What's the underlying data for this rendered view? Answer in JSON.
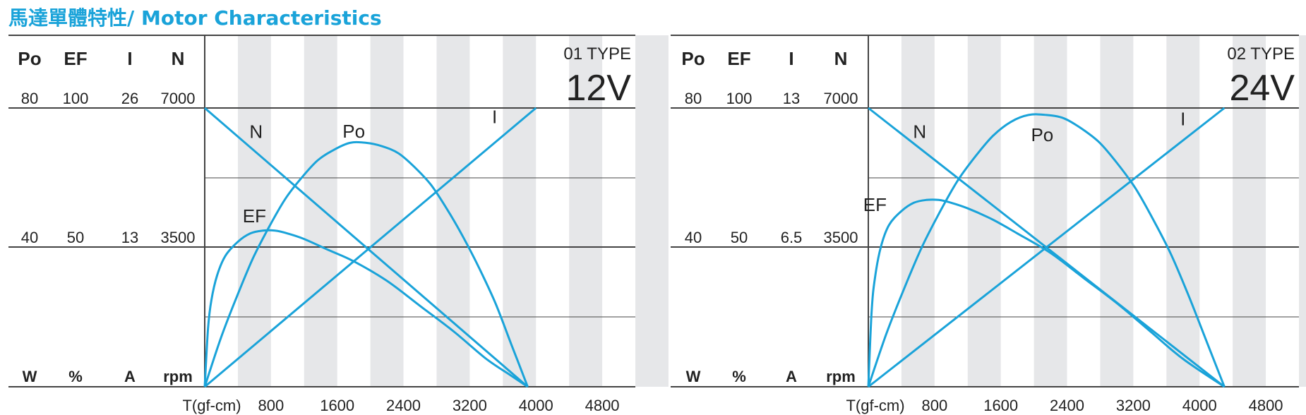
{
  "header": {
    "title": "馬達單體特性/ Motor Characteristics"
  },
  "chart_data": [
    {
      "type": "line",
      "type_label": "01 TYPE",
      "voltage": "12V",
      "columns": [
        "Po",
        "EF",
        "I",
        "N"
      ],
      "units": [
        "W",
        "%",
        "A",
        "rpm"
      ],
      "top_values": [
        "80",
        "100",
        "26",
        "7000"
      ],
      "mid_values": [
        "40",
        "50",
        "13",
        "3500"
      ],
      "xlabel": "T(gf-cm)",
      "xticks": [
        "800",
        "1600",
        "2400",
        "3200",
        "4000",
        "4800"
      ],
      "xlim": [
        0,
        5200
      ],
      "series": [
        {
          "name": "N",
          "scale_max": 7000,
          "label_at": [
            620,
            6250
          ],
          "points": [
            [
              0,
              7000
            ],
            [
              3900,
              0
            ]
          ]
        },
        {
          "name": "I",
          "scale_max": 26,
          "label_at": [
            3500,
            24.6
          ],
          "points": [
            [
              0,
              0
            ],
            [
              4000,
              26
            ]
          ]
        },
        {
          "name": "Po",
          "scale_max": 80,
          "label_at": [
            1800,
            71.5
          ],
          "points": [
            [
              0,
              0
            ],
            [
              195,
              14
            ],
            [
              390,
              26
            ],
            [
              585,
              37
            ],
            [
              780,
              46
            ],
            [
              975,
              54
            ],
            [
              1170,
              60
            ],
            [
              1365,
              65
            ],
            [
              1560,
              68
            ],
            [
              1755,
              70
            ],
            [
              1950,
              70
            ],
            [
              2145,
              69
            ],
            [
              2340,
              67
            ],
            [
              2535,
              63
            ],
            [
              2730,
              58
            ],
            [
              2925,
              51
            ],
            [
              3120,
              43
            ],
            [
              3315,
              34
            ],
            [
              3510,
              24
            ],
            [
              3705,
              12
            ],
            [
              3900,
              0
            ]
          ]
        },
        {
          "name": "EF",
          "scale_max": 100,
          "label_at": [
            600,
            59
          ],
          "points": [
            [
              0,
              0
            ],
            [
              40,
              21
            ],
            [
              80,
              31
            ],
            [
              150,
              40
            ],
            [
              250,
              47
            ],
            [
              400,
              52
            ],
            [
              550,
              55
            ],
            [
              700,
              56
            ],
            [
              850,
              56
            ],
            [
              1000,
              55
            ],
            [
              1200,
              53
            ],
            [
              1500,
              49
            ],
            [
              1800,
              45
            ],
            [
              2200,
              38
            ],
            [
              2600,
              29
            ],
            [
              3000,
              20
            ],
            [
              3400,
              10
            ],
            [
              3700,
              4
            ],
            [
              3900,
              0
            ]
          ]
        }
      ]
    },
    {
      "type": "line",
      "type_label": "02 TYPE",
      "voltage": "24V",
      "columns": [
        "Po",
        "EF",
        "I",
        "N"
      ],
      "units": [
        "W",
        "%",
        "A",
        "rpm"
      ],
      "top_values": [
        "80",
        "100",
        "13",
        "7000"
      ],
      "mid_values": [
        "40",
        "50",
        "6.5",
        "3500"
      ],
      "xlabel": "T(gf-cm)",
      "xticks": [
        "800",
        "1600",
        "2400",
        "3200",
        "4000",
        "4800"
      ],
      "xlim": [
        0,
        5200
      ],
      "series": [
        {
          "name": "N",
          "scale_max": 7000,
          "label_at": [
            620,
            6250
          ],
          "points": [
            [
              0,
              7000
            ],
            [
              4300,
              0
            ]
          ]
        },
        {
          "name": "I",
          "scale_max": 13,
          "label_at": [
            3800,
            12.2
          ],
          "points": [
            [
              0,
              0
            ],
            [
              4300,
              13
            ]
          ]
        },
        {
          "name": "Po",
          "scale_max": 80,
          "label_at": [
            2100,
            70.5
          ],
          "points": [
            [
              0,
              0
            ],
            [
              215,
              15
            ],
            [
              430,
              28
            ],
            [
              645,
              40
            ],
            [
              860,
              50
            ],
            [
              1075,
              59
            ],
            [
              1290,
              66
            ],
            [
              1505,
              72
            ],
            [
              1720,
              76
            ],
            [
              1935,
              78
            ],
            [
              2150,
              78
            ],
            [
              2365,
              77
            ],
            [
              2580,
              74
            ],
            [
              2795,
              70
            ],
            [
              3010,
              64
            ],
            [
              3225,
              57
            ],
            [
              3440,
              48
            ],
            [
              3655,
              38
            ],
            [
              3870,
              26
            ],
            [
              4085,
              13
            ],
            [
              4300,
              0
            ]
          ]
        },
        {
          "name": "EF",
          "scale_max": 100,
          "label_at": [
            80,
            63
          ],
          "points": [
            [
              0,
              0
            ],
            [
              40,
              27
            ],
            [
              80,
              39
            ],
            [
              150,
              50
            ],
            [
              250,
              58
            ],
            [
              400,
              63
            ],
            [
              550,
              66
            ],
            [
              700,
              67
            ],
            [
              850,
              67
            ],
            [
              1000,
              66
            ],
            [
              1200,
              64
            ],
            [
              1500,
              60
            ],
            [
              1800,
              55
            ],
            [
              2200,
              48
            ],
            [
              2600,
              39
            ],
            [
              3000,
              30
            ],
            [
              3400,
              20
            ],
            [
              3800,
              10
            ],
            [
              4300,
              0
            ]
          ]
        }
      ]
    }
  ]
}
